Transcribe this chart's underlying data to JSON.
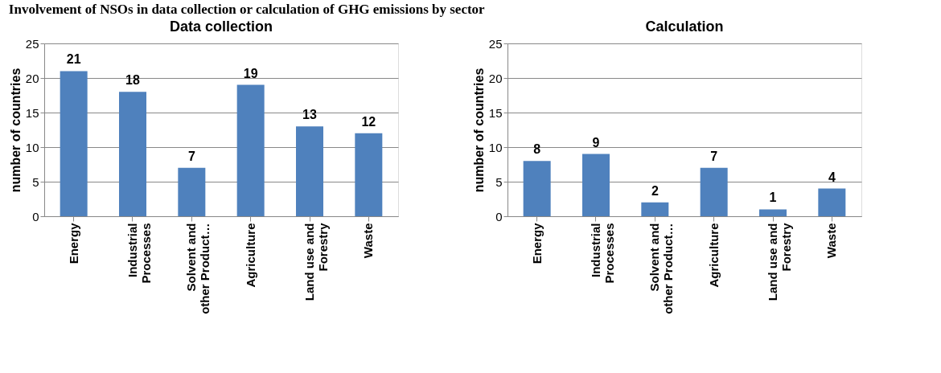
{
  "chart_data": [
    {
      "type": "bar",
      "title": "Data collection",
      "ylabel": "number of countries",
      "annotations": [
        "Involvement of NSOs in data collection or calculation of GHG emissions by sector"
      ],
      "categories": [
        "Energy",
        "Industrial Processes",
        "Solvent and other Product…",
        "Agriculture",
        "Land use and Forestry",
        "Waste"
      ],
      "values": [
        21,
        18,
        7,
        19,
        13,
        12
      ],
      "color": "#4f81bd",
      "ylim": [
        0,
        25
      ],
      "yticks": [
        0,
        5,
        10,
        15,
        20,
        25
      ],
      "grid": "y",
      "data_labels": true
    },
    {
      "type": "bar",
      "title": "Calculation",
      "ylabel": "number of countries",
      "categories": [
        "Energy",
        "Industrial Processes",
        "Solvent and other Product…",
        "Agriculture",
        "Land use and Forestry",
        "Waste"
      ],
      "values": [
        8,
        9,
        2,
        7,
        1,
        4
      ],
      "color": "#4f81bd",
      "ylim": [
        0,
        25
      ],
      "yticks": [
        0,
        5,
        10,
        15,
        20,
        25
      ],
      "grid": "y",
      "data_labels": true
    }
  ]
}
